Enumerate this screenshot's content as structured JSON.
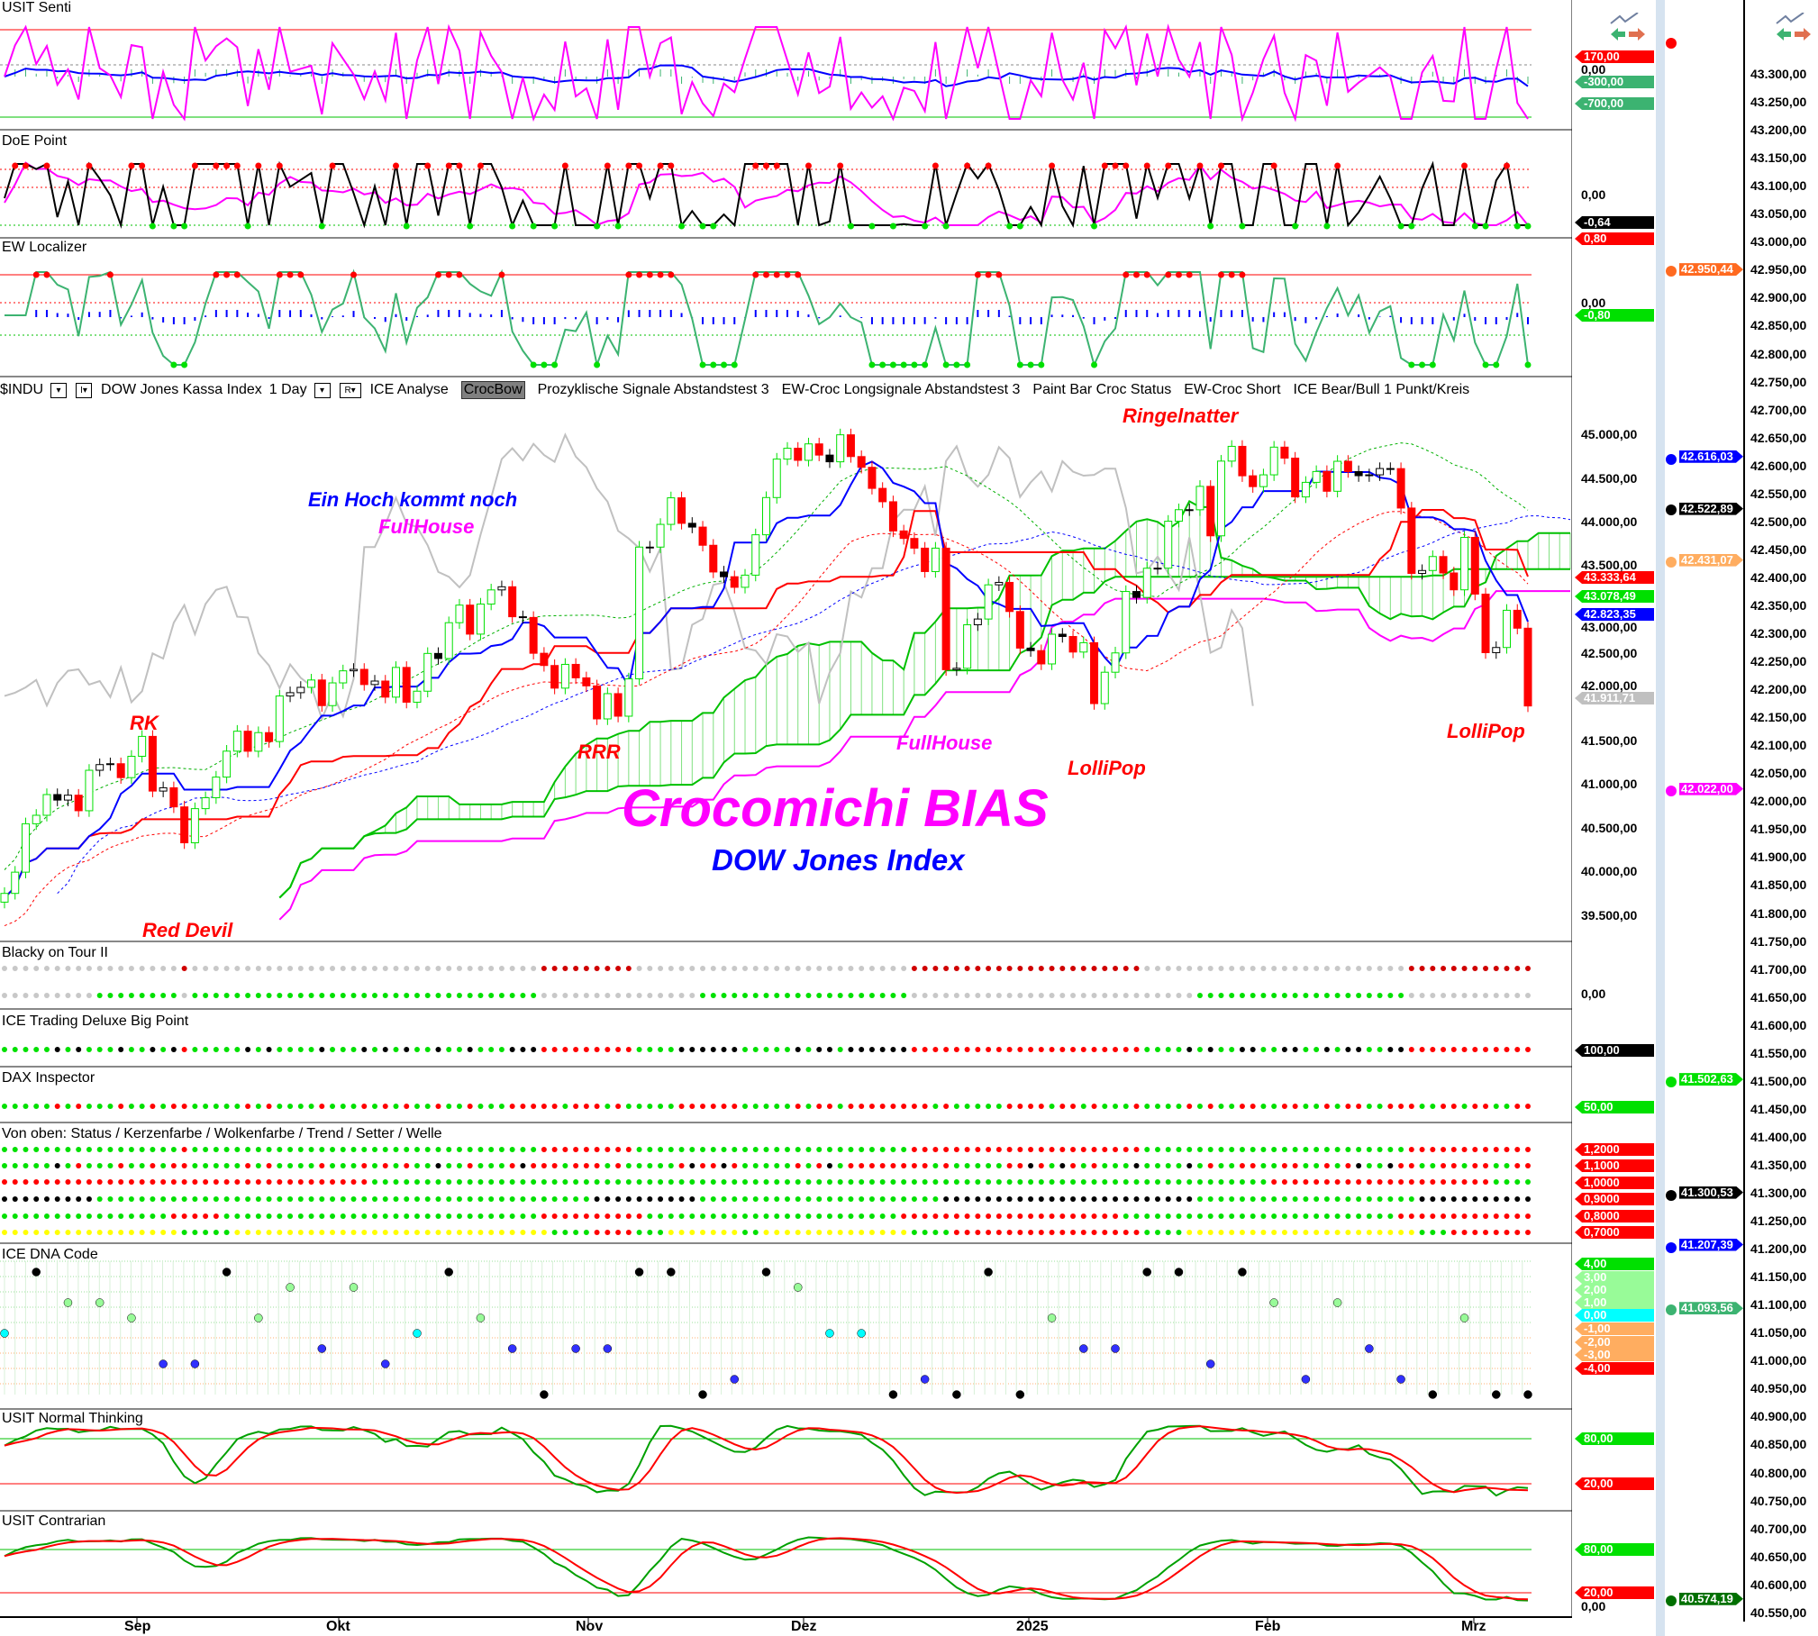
{
  "toolbar": {
    "symbol": "$INDU",
    "interval_btn": "I▾",
    "instrument": "DOW Jones Kassa Index",
    "period": "1 Day",
    "r_btn": "R▾",
    "studies": [
      "ICE Analyse",
      "CrocBow",
      "Prozyklische Signale Abstandstest 3",
      "EW-Croc Longsignale Abstandstest 3",
      "Paint Bar Croc Status",
      "EW-Croc Short",
      "ICE Bear/Bull 1 Punkt/Kreis"
    ]
  },
  "panels": {
    "senti": "USIT Senti",
    "doe": "DoE Point",
    "ew": "EW Localizer",
    "blacky": "Blacky on Tour II",
    "ice_trading": "ICE Trading Deluxe Big Point",
    "dax": "DAX Inspector",
    "vonoben": "Von oben: Status / Kerzenfarbe / Wolkenfarbe / Trend / Setter / Welle",
    "dna": "ICE DNA Code",
    "normal": "USIT Normal Thinking",
    "contrarian": "USIT Contrarian"
  },
  "annotations": {
    "title": "Crocomichi BIAS",
    "subtitle": "DOW Jones Index",
    "hoch": "Ein Hoch kommt noch",
    "fullhouse1": "FullHouse",
    "rk": "RK",
    "rrr": "RRR",
    "fullhouse2": "FullHouse",
    "lollipop1": "LolliPop",
    "ringelnatter": "Ringelnatter",
    "lollipop2": "LolliPop",
    "reddevil": "Red Devil"
  },
  "colors": {
    "up": "#00e000",
    "down": "#ff0000",
    "tenkan": "#0000ff",
    "kijun": "#ff0000",
    "cloud": "#00c000",
    "magenta": "#ff00ff"
  },
  "chart_data": {
    "type": "candlestick",
    "x_ticks": [
      "Sep",
      "Okt",
      "Nov",
      "Dez",
      "2025",
      "Feb",
      "Mrz"
    ],
    "ylim": [
      39300,
      45300
    ],
    "y_ticks": [
      "45.000,00",
      "44.500,00",
      "44.000,00",
      "43.500,00",
      "43.000,00",
      "42.500,00",
      "42.000,00",
      "41.500,00",
      "41.000,00",
      "40.500,00",
      "40.000,00",
      "39.500,00"
    ],
    "closes": [
      39766,
      40009,
      40563,
      40660,
      40897,
      40834,
      40890,
      40712,
      41175,
      41240,
      41250,
      41091,
      41335,
      41563,
      40937,
      40975,
      40756,
      40345,
      40736,
      40861,
      41097,
      41394,
      41622,
      41393,
      41606,
      41504,
      42025,
      42063,
      42124,
      42208,
      41915,
      42175,
      42313,
      42330,
      42156,
      42196,
      42012,
      42352,
      41954,
      42080,
      42512,
      42454,
      42864,
      43065,
      42733,
      43077,
      43239,
      43275,
      42932,
      42924,
      42514,
      42374,
      42115,
      42387,
      42233,
      42141,
      41763,
      42052,
      41794,
      42221,
      43729,
      43729,
      43989,
      44293,
      44001,
      43958,
      43750,
      43444,
      43390,
      43269,
      43408,
      43870,
      44296,
      44736,
      44860,
      44722,
      44910,
      44782,
      44705,
      45014,
      44765,
      44642,
      44401,
      44248,
      43914,
      43828,
      43717,
      43449,
      43717,
      42326,
      42342,
      42840,
      42906,
      43297,
      43325,
      42992,
      42573,
      42544,
      42392,
      42732,
      42706,
      42528,
      42635,
      41938,
      42297,
      42518,
      43221,
      43153,
      43487,
      43488,
      44025,
      44157,
      44156,
      44424,
      43858,
      44713,
      44882,
      44545,
      44421,
      44556,
      44873,
      44747,
      44303,
      44470,
      44594,
      44368,
      44711,
      44593,
      44546,
      44556,
      44628,
      44627,
      44176,
      43428,
      43461,
      43621,
      43433,
      43240,
      43840,
      43191,
      42521,
      42580,
      43006,
      42801,
      41911
    ]
  },
  "axis_main": {
    "senti_ticks": [
      "0,00"
    ],
    "doe_ticks": [
      "0,00"
    ],
    "ew_ticks": [
      "0,00"
    ],
    "blacky_ticks": [
      "0,00"
    ],
    "contrarian_ticks": [
      "0,00"
    ]
  },
  "tags": [
    {
      "label": "170,00",
      "color": "#ff0000"
    },
    {
      "label": "-300,00",
      "color": "#3cb371"
    },
    {
      "label": "-700,00",
      "color": "#3cb371"
    },
    {
      "label": "-0,64",
      "color": "#000000"
    },
    {
      "label": "0,80",
      "color": "#ff0000"
    },
    {
      "label": "-0,80",
      "color": "#00e000"
    },
    {
      "label": "43.333,64",
      "color": "#ff0000"
    },
    {
      "label": "43.078,49",
      "color": "#00e000"
    },
    {
      "label": "42.823,35",
      "color": "#0000ff"
    },
    {
      "label": "41.911,71",
      "color": "#c0c0c0"
    },
    {
      "label": "100,00",
      "color": "#000000"
    },
    {
      "label": "50,00",
      "color": "#00e000"
    },
    {
      "label": "1,2000",
      "color": "#ff0000"
    },
    {
      "label": "1,1000",
      "color": "#ff0000"
    },
    {
      "label": "1,0000",
      "color": "#ff0000"
    },
    {
      "label": "0,9000",
      "color": "#ff0000"
    },
    {
      "label": "0,8000",
      "color": "#ff0000"
    },
    {
      "label": "0,7000",
      "color": "#ff0000"
    },
    {
      "label": "4,00",
      "color": "#00e000"
    },
    {
      "label": "3,00",
      "color": "#98fb98"
    },
    {
      "label": "2,00",
      "color": "#98fb98"
    },
    {
      "label": "1,00",
      "color": "#98fb98"
    },
    {
      "label": "0,00",
      "color": "#00ffff"
    },
    {
      "label": "-1,00",
      "color": "#ffad60"
    },
    {
      "label": "-2,00",
      "color": "#ffad60"
    },
    {
      "label": "-3,00",
      "color": "#ffad60"
    },
    {
      "label": "-4,00",
      "color": "#ff0000"
    },
    {
      "label": "80,00",
      "color": "#00e000"
    },
    {
      "label": "20,00",
      "color": "#ff0000"
    },
    {
      "label": "80,00",
      "color": "#00e000"
    },
    {
      "label": "20,00",
      "color": "#ff0000"
    }
  ],
  "far_axis": {
    "range": [
      43300,
      40550
    ],
    "step": 50,
    "tags": [
      {
        "value": 42950.44,
        "label": "42.950,44",
        "color": "#ff6a20"
      },
      {
        "value": 42616.03,
        "label": "42.616,03",
        "color": "#0000ff"
      },
      {
        "value": 42522.89,
        "label": "42.522,89",
        "color": "#000000"
      },
      {
        "value": 42431.07,
        "label": "42.431,07",
        "color": "#ffad60"
      },
      {
        "value": 42022.0,
        "label": "42.022,00",
        "color": "#ff00ff"
      },
      {
        "value": 41502.63,
        "label": "41.502,63",
        "color": "#00e000"
      },
      {
        "value": 41300.53,
        "label": "41.300,53",
        "color": "#000000"
      },
      {
        "value": 41207.39,
        "label": "41.207,39",
        "color": "#0000ff"
      },
      {
        "value": 41093.56,
        "label": "41.093,56",
        "color": "#3cb371"
      },
      {
        "value": 40574.19,
        "label": "40.574,19",
        "color": "#007000"
      }
    ]
  },
  "icons": [
    "trend-arrows-icon",
    "trend-arrows-icon"
  ]
}
